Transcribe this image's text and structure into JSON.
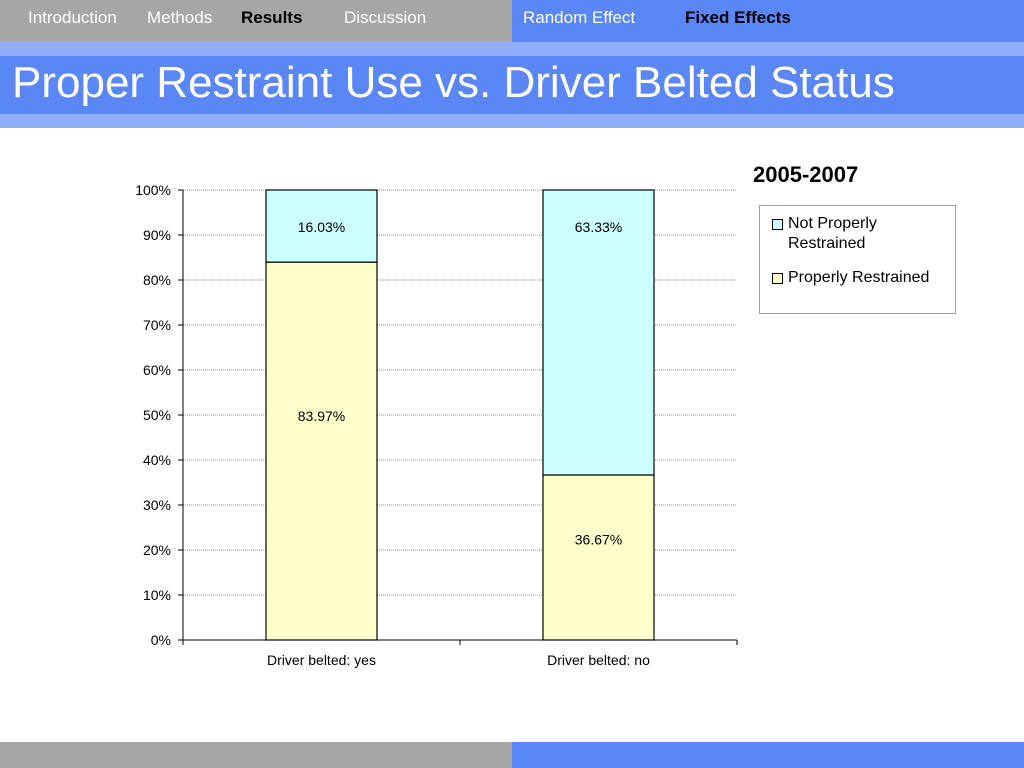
{
  "nav": {
    "left": [
      {
        "label": "Introduction",
        "active": false
      },
      {
        "label": "Methods",
        "active": false
      },
      {
        "label": "Results",
        "active": true
      },
      {
        "label": "Discussion",
        "active": false
      }
    ],
    "right": [
      {
        "label": "Random Effect",
        "active": false
      },
      {
        "label": "Fixed Effects",
        "active": true
      }
    ]
  },
  "slide": {
    "title": "Proper Restraint Use vs. Driver Belted Status"
  },
  "colors": {
    "nav_gray": "#a6a6a6",
    "nav_blue": "#5b86f5",
    "band_light_blue": "#8fadf8",
    "properly_restrained": "#ffffcc",
    "not_properly_restrained": "#ccffff"
  },
  "chart_data": {
    "type": "bar",
    "stacked": true,
    "title": "2005-2007",
    "xlabel": "",
    "ylabel": "",
    "categories": [
      "Driver belted: yes",
      "Driver belted: no"
    ],
    "series": [
      {
        "name": "Properly Restrained",
        "values": [
          83.97,
          36.67
        ],
        "labels": [
          "83.97%",
          "36.67%"
        ],
        "color": "#ffffcc"
      },
      {
        "name": "Not Properly Restrained",
        "values": [
          16.03,
          63.33
        ],
        "labels": [
          "16.03%",
          "63.33%"
        ],
        "color": "#ccffff"
      }
    ],
    "ylim": [
      0,
      100
    ],
    "yticks": [
      "0%",
      "10%",
      "20%",
      "30%",
      "40%",
      "50%",
      "60%",
      "70%",
      "80%",
      "90%",
      "100%"
    ],
    "grid": true,
    "legend": {
      "position": "right",
      "items": [
        {
          "line1": "Not Properly",
          "line2": "Restrained",
          "color": "#ccffff"
        },
        {
          "line1": "Properly Restrained",
          "line2": "",
          "color": "#ffffcc"
        }
      ]
    }
  }
}
